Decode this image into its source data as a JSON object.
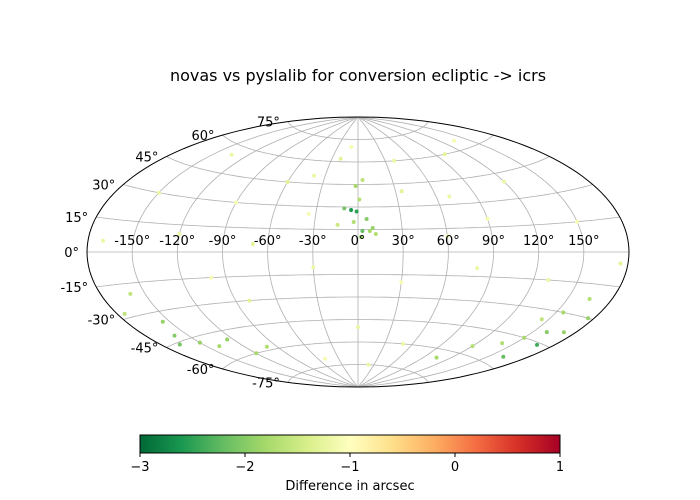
{
  "chart_data": {
    "type": "scatter",
    "projection": "aitoff",
    "title": "novas vs pyslalib for conversion ecliptic -> icrs",
    "grid": true,
    "x_ticks": [
      "-150°",
      "-120°",
      "-90°",
      "-60°",
      "-30°",
      "0°",
      "30°",
      "60°",
      "90°",
      "120°",
      "150°"
    ],
    "y_ticks": [
      "-75°",
      "-60°",
      "-45°",
      "-30°",
      "-15°",
      "0°",
      "15°",
      "30°",
      "45°",
      "60°",
      "75°"
    ],
    "colorbar": {
      "label": "Difference in arcsec",
      "colormap": "RdYlGn_r",
      "range": [
        -3,
        1
      ],
      "tick_labels": [
        "−3",
        "−2",
        "−1",
        "0",
        "1"
      ],
      "colors": [
        "#006837",
        "#1a9850",
        "#66bd63",
        "#a6d96a",
        "#d9ef8b",
        "#ffffbf",
        "#fee08b",
        "#fdae61",
        "#f46d43",
        "#d73027",
        "#a50026"
      ]
    },
    "points": [
      [
        -5,
        28,
        -2.6
      ],
      [
        -1,
        27,
        -2.5
      ],
      [
        -10,
        29,
        -2.1
      ],
      [
        3,
        14,
        -2.2
      ],
      [
        6,
        22,
        -2.0
      ],
      [
        8,
        14,
        -1.8
      ],
      [
        10,
        16,
        -1.9
      ],
      [
        -3,
        20,
        -1.7
      ],
      [
        2,
        10,
        -1.9
      ],
      [
        12,
        12,
        -1.7
      ],
      [
        -2,
        44,
        -1.8
      ],
      [
        4,
        48,
        -1.6
      ],
      [
        -14,
        18,
        -1.5
      ],
      [
        1,
        35,
        -1.7
      ],
      [
        -167,
        -46,
        -2.1
      ],
      [
        -160,
        -42,
        -2.0
      ],
      [
        -150,
        -48,
        -1.9
      ],
      [
        -140,
        -52,
        -1.8
      ],
      [
        -155,
        -35,
        -1.9
      ],
      [
        -175,
        -28,
        -1.6
      ],
      [
        -120,
        -60,
        -1.8
      ],
      [
        -100,
        -58,
        -1.7
      ],
      [
        -125,
        -50,
        -1.9
      ],
      [
        -160,
        -20,
        -1.6
      ],
      [
        168,
        -46,
        -2.4
      ],
      [
        160,
        -40,
        -2.0
      ],
      [
        172,
        -38,
        -1.9
      ],
      [
        155,
        -30,
        -1.8
      ],
      [
        165,
        -22,
        -1.7
      ],
      [
        150,
        -45,
        -1.8
      ],
      [
        140,
        -50,
        -1.7
      ],
      [
        176,
        -30,
        -1.9
      ],
      [
        145,
        -35,
        -1.6
      ],
      [
        120,
        -55,
        -1.7
      ],
      [
        105,
        -65,
        -1.8
      ],
      [
        162,
        -55,
        -2.2
      ],
      [
        -60,
        45,
        -1.3
      ],
      [
        -40,
        50,
        -1.2
      ],
      [
        -90,
        30,
        -1.1
      ],
      [
        40,
        60,
        -1.2
      ],
      [
        -20,
        62,
        -1.3
      ],
      [
        90,
        20,
        -1.1
      ],
      [
        120,
        40,
        -1.2
      ],
      [
        -120,
        10,
        -1.2
      ],
      [
        60,
        10,
        -1.1
      ],
      [
        -30,
        -10,
        -1.2
      ],
      [
        30,
        -20,
        -1.1
      ],
      [
        80,
        -10,
        -1.2
      ],
      [
        -80,
        -30,
        -1.3
      ],
      [
        0,
        -50,
        -1.2
      ],
      [
        50,
        -60,
        -1.2
      ],
      [
        -50,
        -70,
        -1.1
      ],
      [
        100,
        60,
        -1.3
      ],
      [
        -150,
        30,
        -1.2
      ],
      [
        150,
        15,
        -1.1
      ],
      [
        -170,
        5,
        -1.2
      ],
      [
        175,
        -5,
        -1.3
      ],
      [
        -10,
        70,
        -1.1
      ],
      [
        20,
        -75,
        -1.2
      ],
      [
        -100,
        -15,
        -1.1
      ],
      [
        130,
        -15,
        -1.2
      ],
      [
        -70,
        5,
        -1.3
      ],
      [
        70,
        35,
        -1.2
      ],
      [
        -35,
        25,
        -1.1
      ],
      [
        35,
        40,
        -1.3
      ],
      [
        -135,
        55,
        -1.2
      ],
      [
        135,
        65,
        -1.1
      ]
    ]
  }
}
